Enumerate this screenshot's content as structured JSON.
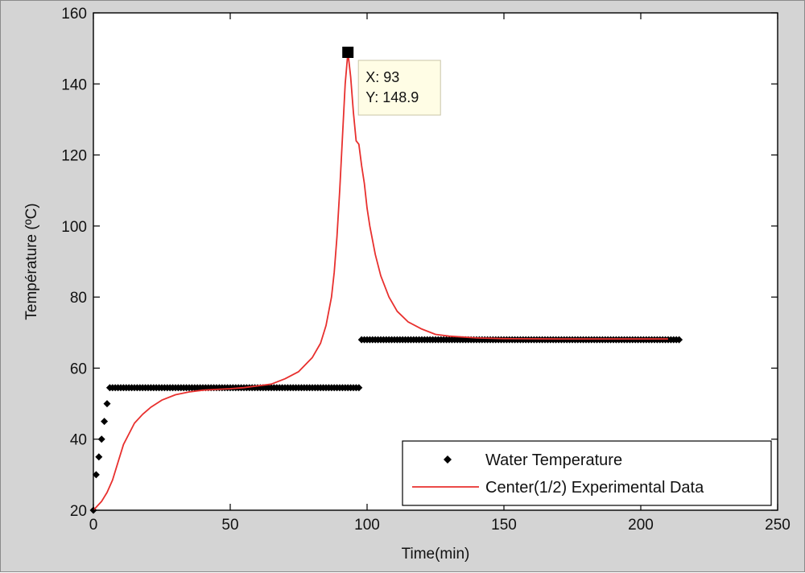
{
  "chart_data": {
    "type": "scatter",
    "title": "",
    "xlabel": "Time(min)",
    "ylabel": "Température (ºC)",
    "xlim": [
      0,
      250
    ],
    "ylim": [
      20,
      160
    ],
    "xticks": [
      0,
      50,
      100,
      150,
      200,
      250
    ],
    "yticks": [
      20,
      40,
      60,
      80,
      100,
      120,
      140,
      160
    ],
    "grid": false,
    "legend_position": "bottom-right",
    "series": [
      {
        "name": "Water Temperature",
        "kind": "markers",
        "color": "#000000",
        "rising_points": [
          {
            "x": 0,
            "y": 20
          },
          {
            "x": 1,
            "y": 30
          },
          {
            "x": 2,
            "y": 35
          },
          {
            "x": 3,
            "y": 40
          },
          {
            "x": 4,
            "y": 45
          },
          {
            "x": 5,
            "y": 50
          }
        ],
        "segments": [
          {
            "x_start": 6,
            "x_end": 97,
            "step": 1,
            "y": 54.5
          },
          {
            "x_start": 98,
            "x_end": 214,
            "step": 1,
            "y": 68
          }
        ]
      },
      {
        "name": "Center(1/2) Experimental Data",
        "kind": "line",
        "color": "#e8302e",
        "x": [
          0,
          3,
          5,
          7,
          9,
          11,
          13,
          15,
          18,
          21,
          25,
          30,
          35,
          40,
          45,
          50,
          55,
          60,
          65,
          70,
          75,
          80,
          83,
          85,
          87,
          88,
          89,
          90,
          91,
          92,
          93,
          94,
          95,
          96,
          97,
          98,
          99,
          100,
          101,
          103,
          105,
          108,
          111,
          115,
          120,
          125,
          130,
          140,
          150,
          170,
          190,
          210
        ],
        "y": [
          20,
          22.5,
          25,
          28.5,
          33.5,
          38.5,
          41.5,
          44.5,
          47,
          49,
          51,
          52.5,
          53.3,
          53.8,
          54,
          54.2,
          54.5,
          55,
          55.5,
          57,
          59,
          63,
          67,
          72,
          80,
          87,
          97,
          110,
          125,
          140,
          148.9,
          142,
          132,
          124,
          123,
          117,
          112,
          105,
          100,
          92,
          86,
          80,
          76,
          73,
          71,
          69.5,
          69,
          68.5,
          68.3,
          68.2,
          68.2,
          68.2
        ]
      }
    ],
    "annotations": [
      {
        "type": "datatip",
        "x": 93,
        "y": 148.9,
        "lines": [
          "X: 93",
          "Y: 148.9"
        ]
      }
    ]
  },
  "colors": {
    "figure_bg": "#d4d4d4",
    "axes_bg": "#ffffff",
    "line_red": "#e8302e",
    "marker_black": "#000000",
    "tip_bg": "#fffde5"
  }
}
